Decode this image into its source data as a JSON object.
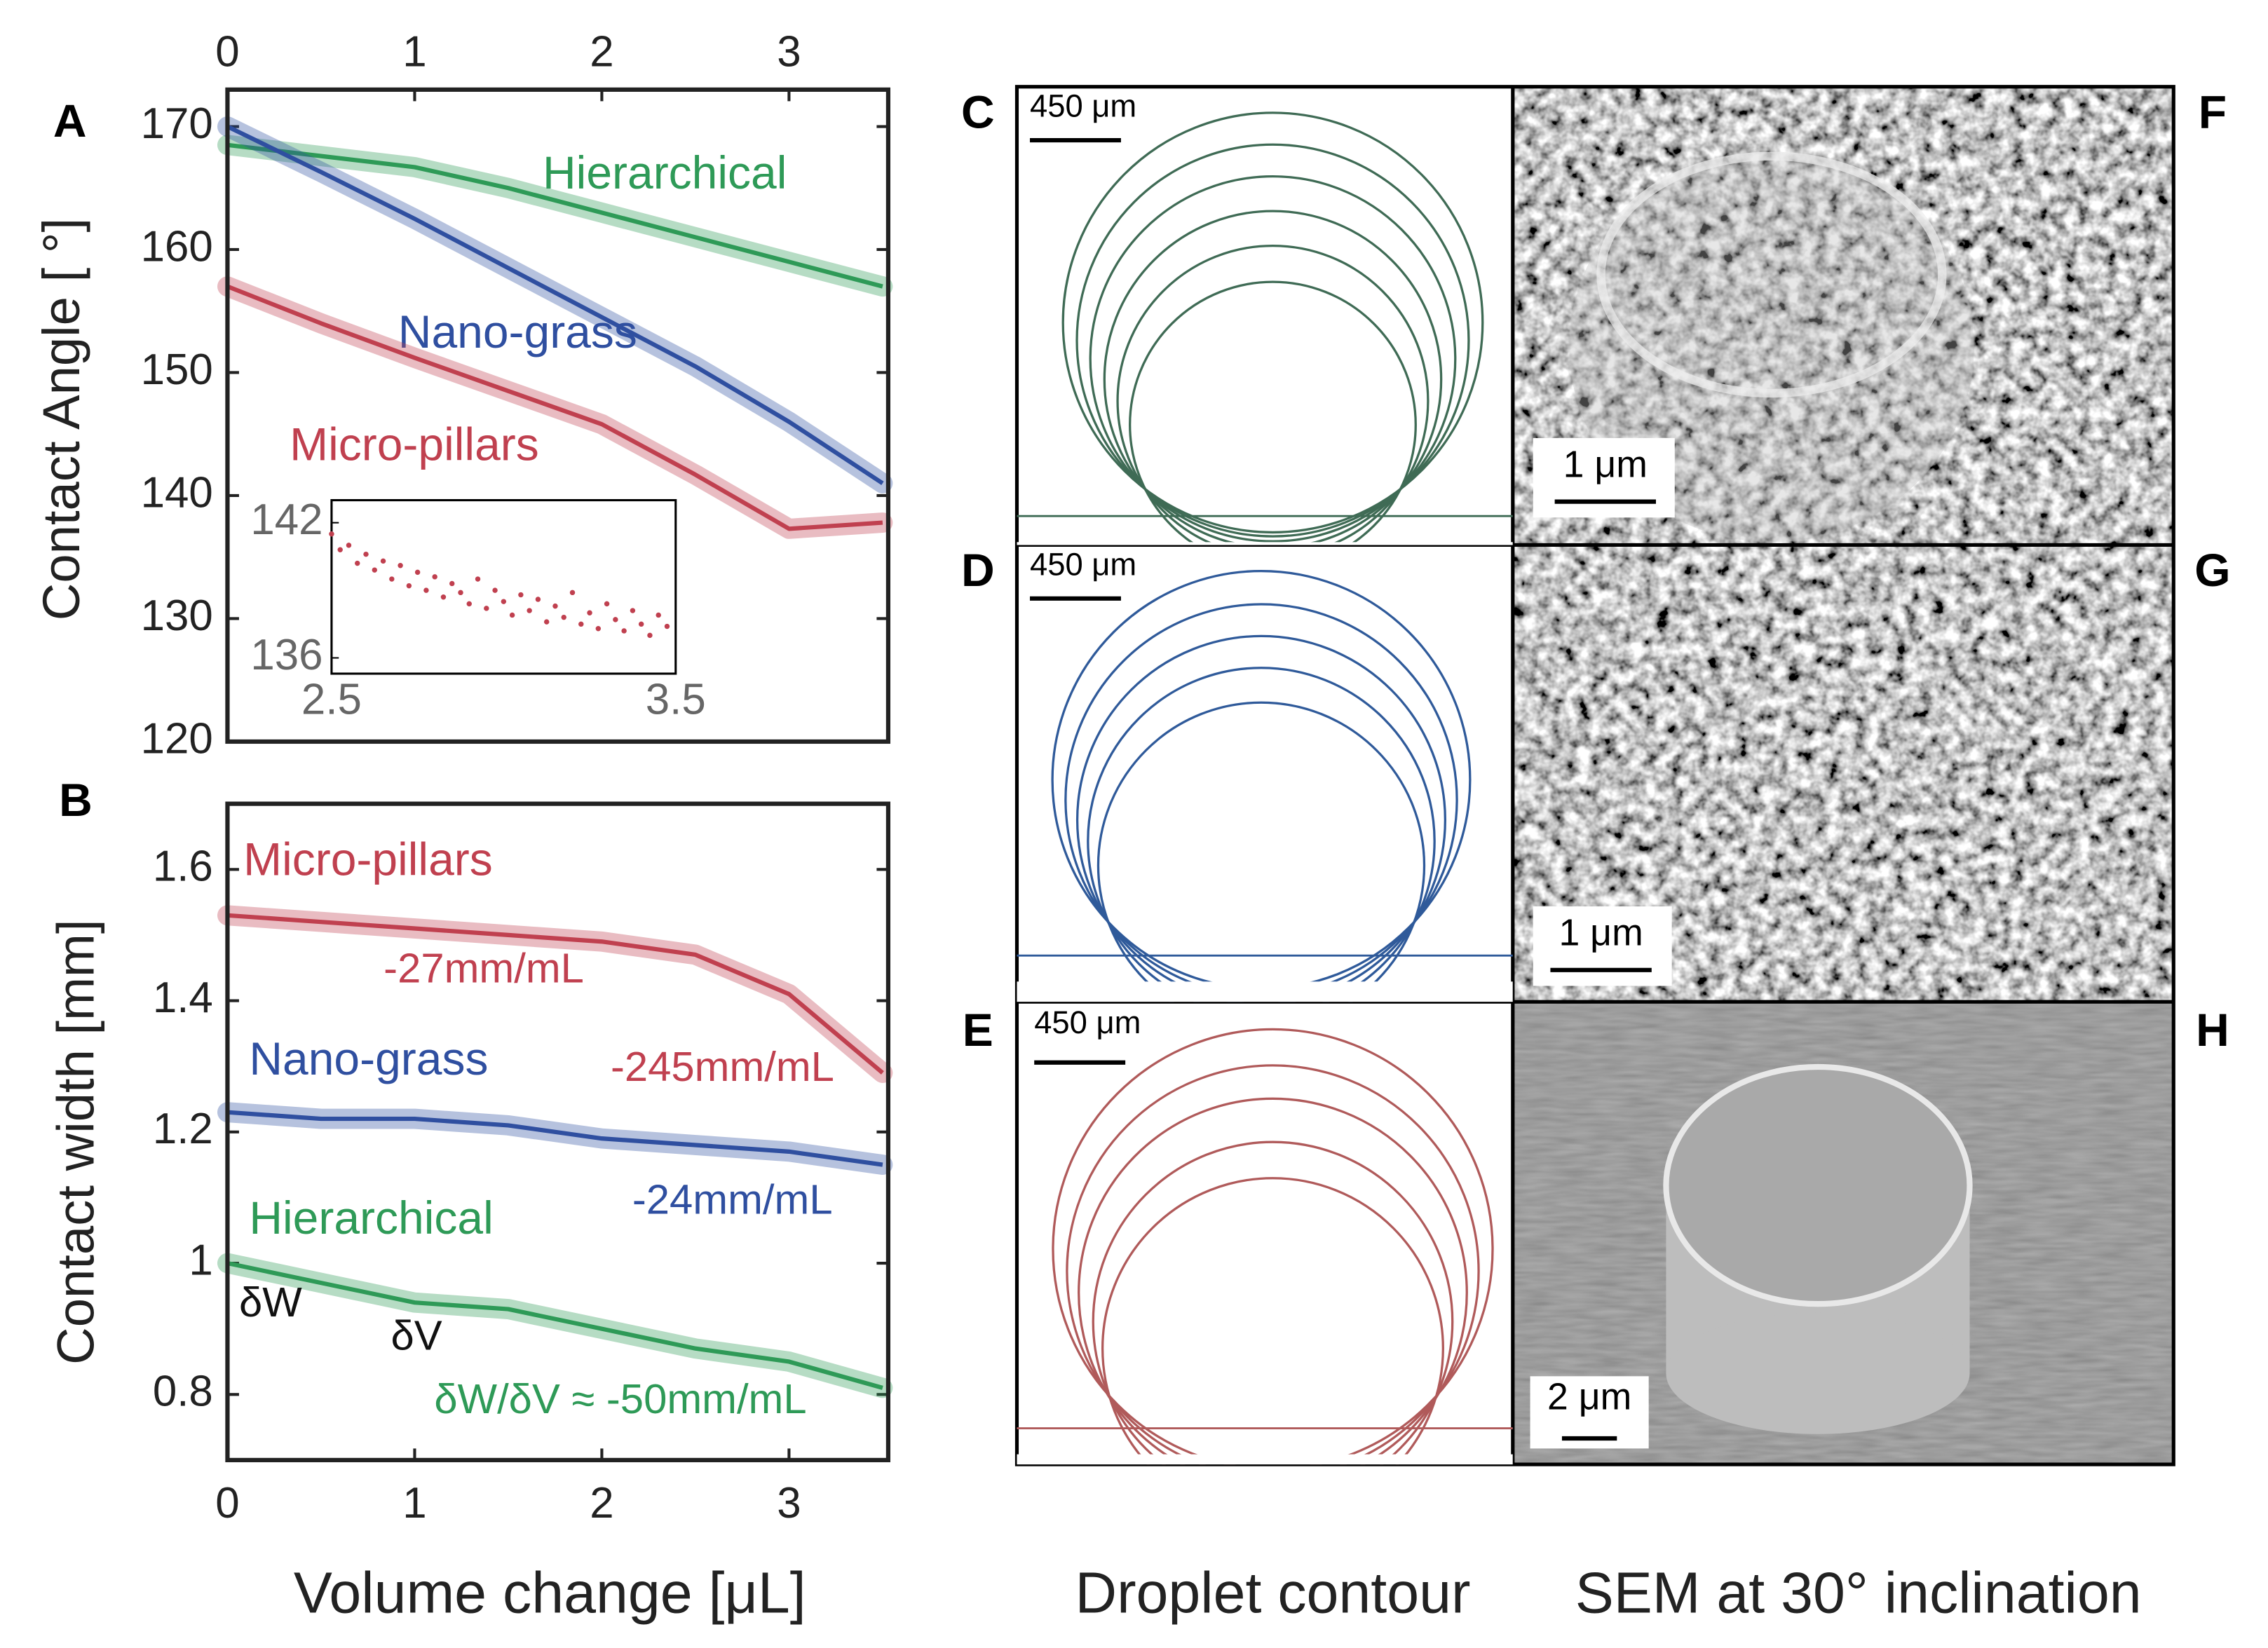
{
  "chart_data": [
    {
      "type": "line",
      "panel": "A",
      "ylabel": "Contact Angle [ °]",
      "xlim": [
        0,
        3.53
      ],
      "xticks": [
        0,
        1,
        2,
        3
      ],
      "ylim": [
        120,
        173
      ],
      "yticks": [
        120,
        130,
        140,
        150,
        160,
        170
      ],
      "x": [
        0,
        0.5,
        1,
        1.5,
        2,
        2.5,
        3,
        3.5
      ],
      "series": [
        {
          "name": "Hierarchical",
          "color": "#2e9a57",
          "values": [
            168.5,
            167.6,
            166.7,
            165,
            163,
            161,
            159,
            157
          ]
        },
        {
          "name": "Nano-grass",
          "color": "#2f4fa0",
          "values": [
            170,
            166.3,
            162.5,
            158.5,
            154.5,
            150.5,
            146,
            141
          ]
        },
        {
          "name": "Micro-pillars",
          "color": "#c0404f",
          "values": [
            157,
            154,
            151.2,
            148.5,
            145.8,
            141.7,
            137.3,
            137.8
          ]
        }
      ],
      "inset": {
        "type": "scatter",
        "color": "#c0404f",
        "xlim": [
          2.5,
          3.5
        ],
        "xticks": [
          2.5,
          3.5
        ],
        "ylim": [
          135.3,
          143
        ],
        "yticks": [
          136,
          142
        ],
        "x": [
          2.5,
          2.525,
          2.55,
          2.575,
          2.6,
          2.625,
          2.65,
          2.675,
          2.7,
          2.725,
          2.75,
          2.775,
          2.8,
          2.825,
          2.85,
          2.875,
          2.9,
          2.925,
          2.95,
          2.975,
          3.0,
          3.025,
          3.05,
          3.075,
          3.1,
          3.125,
          3.15,
          3.175,
          3.2,
          3.225,
          3.25,
          3.275,
          3.3,
          3.325,
          3.35,
          3.375,
          3.4,
          3.425,
          3.45,
          3.475
        ],
        "values": [
          141.5,
          140.8,
          141.0,
          140.2,
          140.6,
          139.9,
          140.3,
          139.5,
          140.1,
          139.2,
          139.8,
          139.0,
          139.6,
          138.7,
          139.3,
          138.9,
          138.4,
          139.5,
          138.2,
          139.0,
          138.5,
          137.9,
          138.8,
          138.1,
          138.6,
          137.6,
          138.3,
          137.8,
          138.9,
          137.5,
          138.0,
          137.3,
          138.4,
          137.7,
          137.2,
          138.1,
          137.5,
          137.0,
          137.9,
          137.4
        ]
      }
    },
    {
      "type": "line",
      "panel": "B",
      "ylabel": "Contact width [mm]",
      "xlabel": "Volume change [μL]",
      "xlim": [
        0,
        3.53
      ],
      "xticks": [
        0,
        1,
        2,
        3
      ],
      "ylim": [
        0.7,
        1.7
      ],
      "yticks": [
        0.8,
        1,
        1.2,
        1.4,
        1.6
      ],
      "x": [
        0,
        0.5,
        1,
        1.5,
        2,
        2.5,
        3,
        3.5
      ],
      "series": [
        {
          "name": "Micro-pillars",
          "color": "#c0404f",
          "values": [
            1.53,
            1.52,
            1.51,
            1.5,
            1.49,
            1.47,
            1.41,
            1.29
          ]
        },
        {
          "name": "Nano-grass",
          "color": "#2f4fa0",
          "values": [
            1.23,
            1.22,
            1.22,
            1.21,
            1.19,
            1.18,
            1.17,
            1.15
          ]
        },
        {
          "name": "Hierarchical",
          "color": "#2e9a57",
          "values": [
            1.0,
            0.97,
            0.94,
            0.93,
            0.9,
            0.87,
            0.85,
            0.81
          ]
        }
      ],
      "annotations": [
        "-27mm/mL",
        "-245mm/mL",
        "-24mm/mL",
        "δW/δV ≈ -50mm/mL",
        "δW",
        "δV"
      ]
    }
  ],
  "panels": [
    {
      "label": "C",
      "scale_bar": "450 μm"
    },
    {
      "label": "D",
      "scale_bar": "450 μm"
    },
    {
      "label": "E",
      "scale_bar": "450 μm"
    },
    {
      "label": "F",
      "scale_bar": "1 μm"
    },
    {
      "label": "G",
      "scale_bar": "1 μm"
    },
    {
      "label": "H",
      "scale_bar": "2 μm"
    }
  ],
  "captions": [
    "Droplet contour",
    "SEM at 30° inclination"
  ]
}
